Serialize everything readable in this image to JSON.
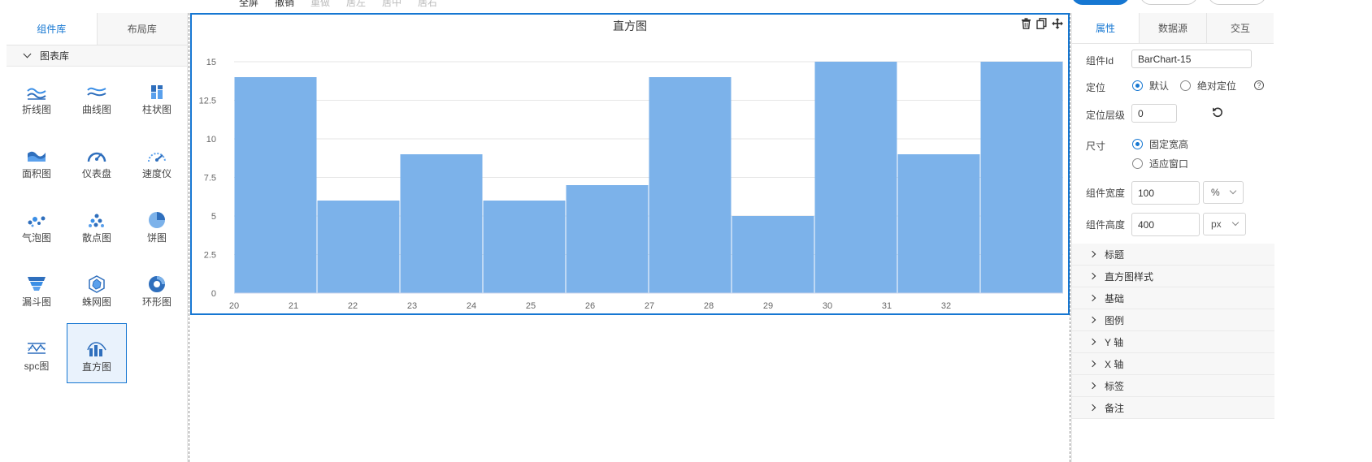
{
  "toolbar": {
    "items": [
      {
        "label": "全屏",
        "disabled": false
      },
      {
        "label": "撤销",
        "disabled": false
      },
      {
        "label": "重做",
        "disabled": true
      },
      {
        "label": "居左",
        "disabled": true
      },
      {
        "label": "居中",
        "disabled": true
      },
      {
        "label": "居右",
        "disabled": true
      }
    ]
  },
  "left_panel": {
    "tabs": [
      {
        "label": "组件库",
        "active": true
      },
      {
        "label": "布局库",
        "active": false
      }
    ],
    "library_title": "图表库",
    "components": [
      {
        "label": "折线图",
        "icon": "line-chart-icon"
      },
      {
        "label": "曲线图",
        "icon": "curve-chart-icon"
      },
      {
        "label": "柱状图",
        "icon": "bar-chart-icon"
      },
      {
        "label": "面积图",
        "icon": "area-chart-icon"
      },
      {
        "label": "仪表盘",
        "icon": "gauge-icon"
      },
      {
        "label": "速度仪",
        "icon": "speedometer-icon"
      },
      {
        "label": "气泡图",
        "icon": "bubble-chart-icon"
      },
      {
        "label": "散点图",
        "icon": "scatter-chart-icon"
      },
      {
        "label": "饼图",
        "icon": "pie-chart-icon"
      },
      {
        "label": "漏斗图",
        "icon": "funnel-chart-icon"
      },
      {
        "label": "蛛网图",
        "icon": "radar-chart-icon"
      },
      {
        "label": "环形图",
        "icon": "donut-chart-icon"
      },
      {
        "label": "spc图",
        "icon": "spc-chart-icon"
      },
      {
        "label": "直方图",
        "icon": "histogram-icon",
        "selected": true
      }
    ]
  },
  "canvas": {
    "chart_title": "直方图",
    "tools": [
      "delete-icon",
      "copy-icon",
      "move-icon"
    ]
  },
  "chart_data": {
    "type": "bar",
    "title": "直方图",
    "xlabel": "",
    "ylabel": "",
    "x_ticks": [
      "20",
      "21",
      "22",
      "23",
      "24",
      "25",
      "26",
      "27",
      "28",
      "29",
      "30",
      "31",
      "32"
    ],
    "y_ticks": [
      "0",
      "2.5",
      "5",
      "7.5",
      "10",
      "12.5",
      "15"
    ],
    "ylim": [
      0,
      15
    ],
    "values": [
      14,
      6,
      9,
      6,
      7,
      14,
      5,
      15,
      9,
      15
    ],
    "bar_color": "#7cb2ea",
    "grid": true,
    "legend": "none"
  },
  "right_panel": {
    "tabs": [
      {
        "label": "属性",
        "active": true
      },
      {
        "label": "数据源",
        "active": false
      },
      {
        "label": "交互",
        "active": false
      }
    ],
    "component_id_label": "组件Id",
    "component_id_value": "BarChart-15",
    "position_label": "定位",
    "position_options": [
      "默认",
      "绝对定位"
    ],
    "position_selected": "默认",
    "zindex_label": "定位层级",
    "zindex_value": "0",
    "size_label": "尺寸",
    "size_options": [
      "固定宽高",
      "适应窗口"
    ],
    "size_selected": "固定宽高",
    "width_label": "组件宽度",
    "width_value": "100",
    "width_unit": "%",
    "height_label": "组件高度",
    "height_value": "400",
    "height_unit": "px",
    "sections": [
      "标题",
      "直方图样式",
      "基础",
      "图例",
      "Y 轴",
      "X 轴",
      "标签",
      "备注"
    ]
  },
  "colors": {
    "accent": "#1677d2",
    "bar": "#7cb2ea"
  }
}
